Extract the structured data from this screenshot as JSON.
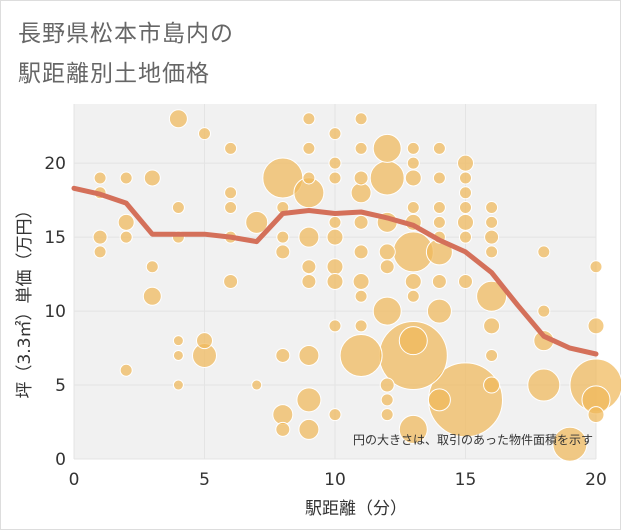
{
  "title_lines": [
    "長野県松本市島内の",
    "駅距離別土地価格"
  ],
  "chart_data": {
    "type": "scatter",
    "title": "長野県松本市島内の駅距離別土地価格",
    "xlabel": "駅距離（分）",
    "ylabel": "坪（3.3㎡）単価（万円）",
    "xlim": [
      0,
      20
    ],
    "ylim": [
      0,
      24
    ],
    "xticks": [
      0,
      5,
      10,
      15,
      20
    ],
    "yticks": [
      0,
      5,
      10,
      15,
      20
    ],
    "grid": true,
    "annotation": "円の大きさは、取引のあった物件面積を示す",
    "colors": {
      "bubble": "#f0b85a",
      "bubble_stroke": "#ffffff",
      "trend": "#d4705a",
      "grid": "#e4e4e4",
      "plot_bg": "#f1f1f1",
      "axis_text": "#333333"
    },
    "bubbles": [
      {
        "x": 1,
        "y": 19,
        "r": 6
      },
      {
        "x": 1,
        "y": 18,
        "r": 6
      },
      {
        "x": 1,
        "y": 15,
        "r": 7
      },
      {
        "x": 1,
        "y": 14,
        "r": 6
      },
      {
        "x": 2,
        "y": 19,
        "r": 6
      },
      {
        "x": 2,
        "y": 16,
        "r": 8
      },
      {
        "x": 2,
        "y": 15,
        "r": 6
      },
      {
        "x": 2,
        "y": 6,
        "r": 6
      },
      {
        "x": 3,
        "y": 19,
        "r": 8
      },
      {
        "x": 3,
        "y": 13,
        "r": 6
      },
      {
        "x": 3,
        "y": 11,
        "r": 9
      },
      {
        "x": 4,
        "y": 23,
        "r": 9
      },
      {
        "x": 4,
        "y": 17,
        "r": 6
      },
      {
        "x": 4,
        "y": 15,
        "r": 6
      },
      {
        "x": 4,
        "y": 8,
        "r": 5
      },
      {
        "x": 4,
        "y": 7,
        "r": 5
      },
      {
        "x": 4,
        "y": 5,
        "r": 5
      },
      {
        "x": 5,
        "y": 22,
        "r": 6
      },
      {
        "x": 5,
        "y": 8,
        "r": 8
      },
      {
        "x": 5,
        "y": 7,
        "r": 12
      },
      {
        "x": 6,
        "y": 21,
        "r": 6
      },
      {
        "x": 6,
        "y": 18,
        "r": 6
      },
      {
        "x": 6,
        "y": 17,
        "r": 6
      },
      {
        "x": 6,
        "y": 15,
        "r": 6
      },
      {
        "x": 6,
        "y": 12,
        "r": 7
      },
      {
        "x": 7,
        "y": 16,
        "r": 11
      },
      {
        "x": 7,
        "y": 5,
        "r": 5
      },
      {
        "x": 8,
        "y": 19,
        "r": 20
      },
      {
        "x": 8,
        "y": 17,
        "r": 6
      },
      {
        "x": 8,
        "y": 15,
        "r": 6
      },
      {
        "x": 8,
        "y": 14,
        "r": 7
      },
      {
        "x": 8,
        "y": 7,
        "r": 7
      },
      {
        "x": 8,
        "y": 3,
        "r": 10
      },
      {
        "x": 8,
        "y": 2,
        "r": 7
      },
      {
        "x": 9,
        "y": 23,
        "r": 6
      },
      {
        "x": 9,
        "y": 21,
        "r": 6
      },
      {
        "x": 9,
        "y": 19,
        "r": 6
      },
      {
        "x": 9,
        "y": 18,
        "r": 15
      },
      {
        "x": 9,
        "y": 15,
        "r": 10
      },
      {
        "x": 9,
        "y": 13,
        "r": 7
      },
      {
        "x": 9,
        "y": 12,
        "r": 7
      },
      {
        "x": 9,
        "y": 7,
        "r": 10
      },
      {
        "x": 9,
        "y": 4,
        "r": 12
      },
      {
        "x": 9,
        "y": 2,
        "r": 10
      },
      {
        "x": 10,
        "y": 22,
        "r": 6
      },
      {
        "x": 10,
        "y": 20,
        "r": 6
      },
      {
        "x": 10,
        "y": 19,
        "r": 6
      },
      {
        "x": 10,
        "y": 16,
        "r": 6
      },
      {
        "x": 10,
        "y": 15,
        "r": 8
      },
      {
        "x": 10,
        "y": 13,
        "r": 8
      },
      {
        "x": 10,
        "y": 12,
        "r": 8
      },
      {
        "x": 10,
        "y": 9,
        "r": 6
      },
      {
        "x": 10,
        "y": 3,
        "r": 6
      },
      {
        "x": 11,
        "y": 23,
        "r": 6
      },
      {
        "x": 11,
        "y": 21,
        "r": 6
      },
      {
        "x": 11,
        "y": 19,
        "r": 7
      },
      {
        "x": 11,
        "y": 18,
        "r": 10
      },
      {
        "x": 11,
        "y": 16,
        "r": 7
      },
      {
        "x": 11,
        "y": 14,
        "r": 7
      },
      {
        "x": 11,
        "y": 12,
        "r": 8
      },
      {
        "x": 11,
        "y": 11,
        "r": 6
      },
      {
        "x": 11,
        "y": 9,
        "r": 6
      },
      {
        "x": 11,
        "y": 7,
        "r": 21
      },
      {
        "x": 12,
        "y": 21,
        "r": 14
      },
      {
        "x": 12,
        "y": 19,
        "r": 17
      },
      {
        "x": 12,
        "y": 16,
        "r": 10
      },
      {
        "x": 12,
        "y": 14,
        "r": 8
      },
      {
        "x": 12,
        "y": 13,
        "r": 7
      },
      {
        "x": 12,
        "y": 10,
        "r": 14
      },
      {
        "x": 12,
        "y": 5,
        "r": 7
      },
      {
        "x": 12,
        "y": 4,
        "r": 6
      },
      {
        "x": 12,
        "y": 3,
        "r": 6
      },
      {
        "x": 13,
        "y": 21,
        "r": 6
      },
      {
        "x": 13,
        "y": 20,
        "r": 6
      },
      {
        "x": 13,
        "y": 19,
        "r": 8
      },
      {
        "x": 13,
        "y": 17,
        "r": 6
      },
      {
        "x": 13,
        "y": 16,
        "r": 8
      },
      {
        "x": 13,
        "y": 14,
        "r": 20
      },
      {
        "x": 13,
        "y": 12,
        "r": 8
      },
      {
        "x": 13,
        "y": 11,
        "r": 6
      },
      {
        "x": 13,
        "y": 8,
        "r": 14
      },
      {
        "x": 13,
        "y": 7,
        "r": 34
      },
      {
        "x": 13,
        "y": 2,
        "r": 14
      },
      {
        "x": 14,
        "y": 21,
        "r": 6
      },
      {
        "x": 14,
        "y": 19,
        "r": 6
      },
      {
        "x": 14,
        "y": 17,
        "r": 6
      },
      {
        "x": 14,
        "y": 16,
        "r": 6
      },
      {
        "x": 14,
        "y": 15,
        "r": 6
      },
      {
        "x": 14,
        "y": 14,
        "r": 13
      },
      {
        "x": 14,
        "y": 12,
        "r": 7
      },
      {
        "x": 14,
        "y": 10,
        "r": 12
      },
      {
        "x": 14,
        "y": 4,
        "r": 11
      },
      {
        "x": 15,
        "y": 20,
        "r": 8
      },
      {
        "x": 15,
        "y": 19,
        "r": 6
      },
      {
        "x": 15,
        "y": 18,
        "r": 6
      },
      {
        "x": 15,
        "y": 17,
        "r": 6
      },
      {
        "x": 15,
        "y": 16,
        "r": 8
      },
      {
        "x": 15,
        "y": 15,
        "r": 6
      },
      {
        "x": 15,
        "y": 12,
        "r": 7
      },
      {
        "x": 15,
        "y": 4,
        "r": 37
      },
      {
        "x": 16,
        "y": 17,
        "r": 6
      },
      {
        "x": 16,
        "y": 16,
        "r": 6
      },
      {
        "x": 16,
        "y": 15,
        "r": 7
      },
      {
        "x": 16,
        "y": 14,
        "r": 6
      },
      {
        "x": 16,
        "y": 11,
        "r": 15
      },
      {
        "x": 16,
        "y": 9,
        "r": 8
      },
      {
        "x": 16,
        "y": 7,
        "r": 6
      },
      {
        "x": 16,
        "y": 5,
        "r": 8
      },
      {
        "x": 18,
        "y": 14,
        "r": 6
      },
      {
        "x": 18,
        "y": 10,
        "r": 6
      },
      {
        "x": 18,
        "y": 8,
        "r": 10
      },
      {
        "x": 18,
        "y": 5,
        "r": 16
      },
      {
        "x": 19,
        "y": 1,
        "r": 17
      },
      {
        "x": 20,
        "y": 13,
        "r": 6
      },
      {
        "x": 20,
        "y": 9,
        "r": 8
      },
      {
        "x": 20,
        "y": 5,
        "r": 26
      },
      {
        "x": 20,
        "y": 4,
        "r": 14
      },
      {
        "x": 20,
        "y": 3,
        "r": 8
      }
    ],
    "trend": {
      "x": [
        0,
        1,
        2,
        3,
        4,
        5,
        6,
        7,
        8,
        9,
        10,
        11,
        12,
        13,
        14,
        15,
        16,
        17,
        18,
        19,
        20
      ],
      "y": [
        18.3,
        17.9,
        17.3,
        15.2,
        15.2,
        15.2,
        15.0,
        14.7,
        16.6,
        16.8,
        16.6,
        16.7,
        16.3,
        15.8,
        14.8,
        14.0,
        12.6,
        10.4,
        8.3,
        7.5,
        7.1
      ]
    }
  }
}
